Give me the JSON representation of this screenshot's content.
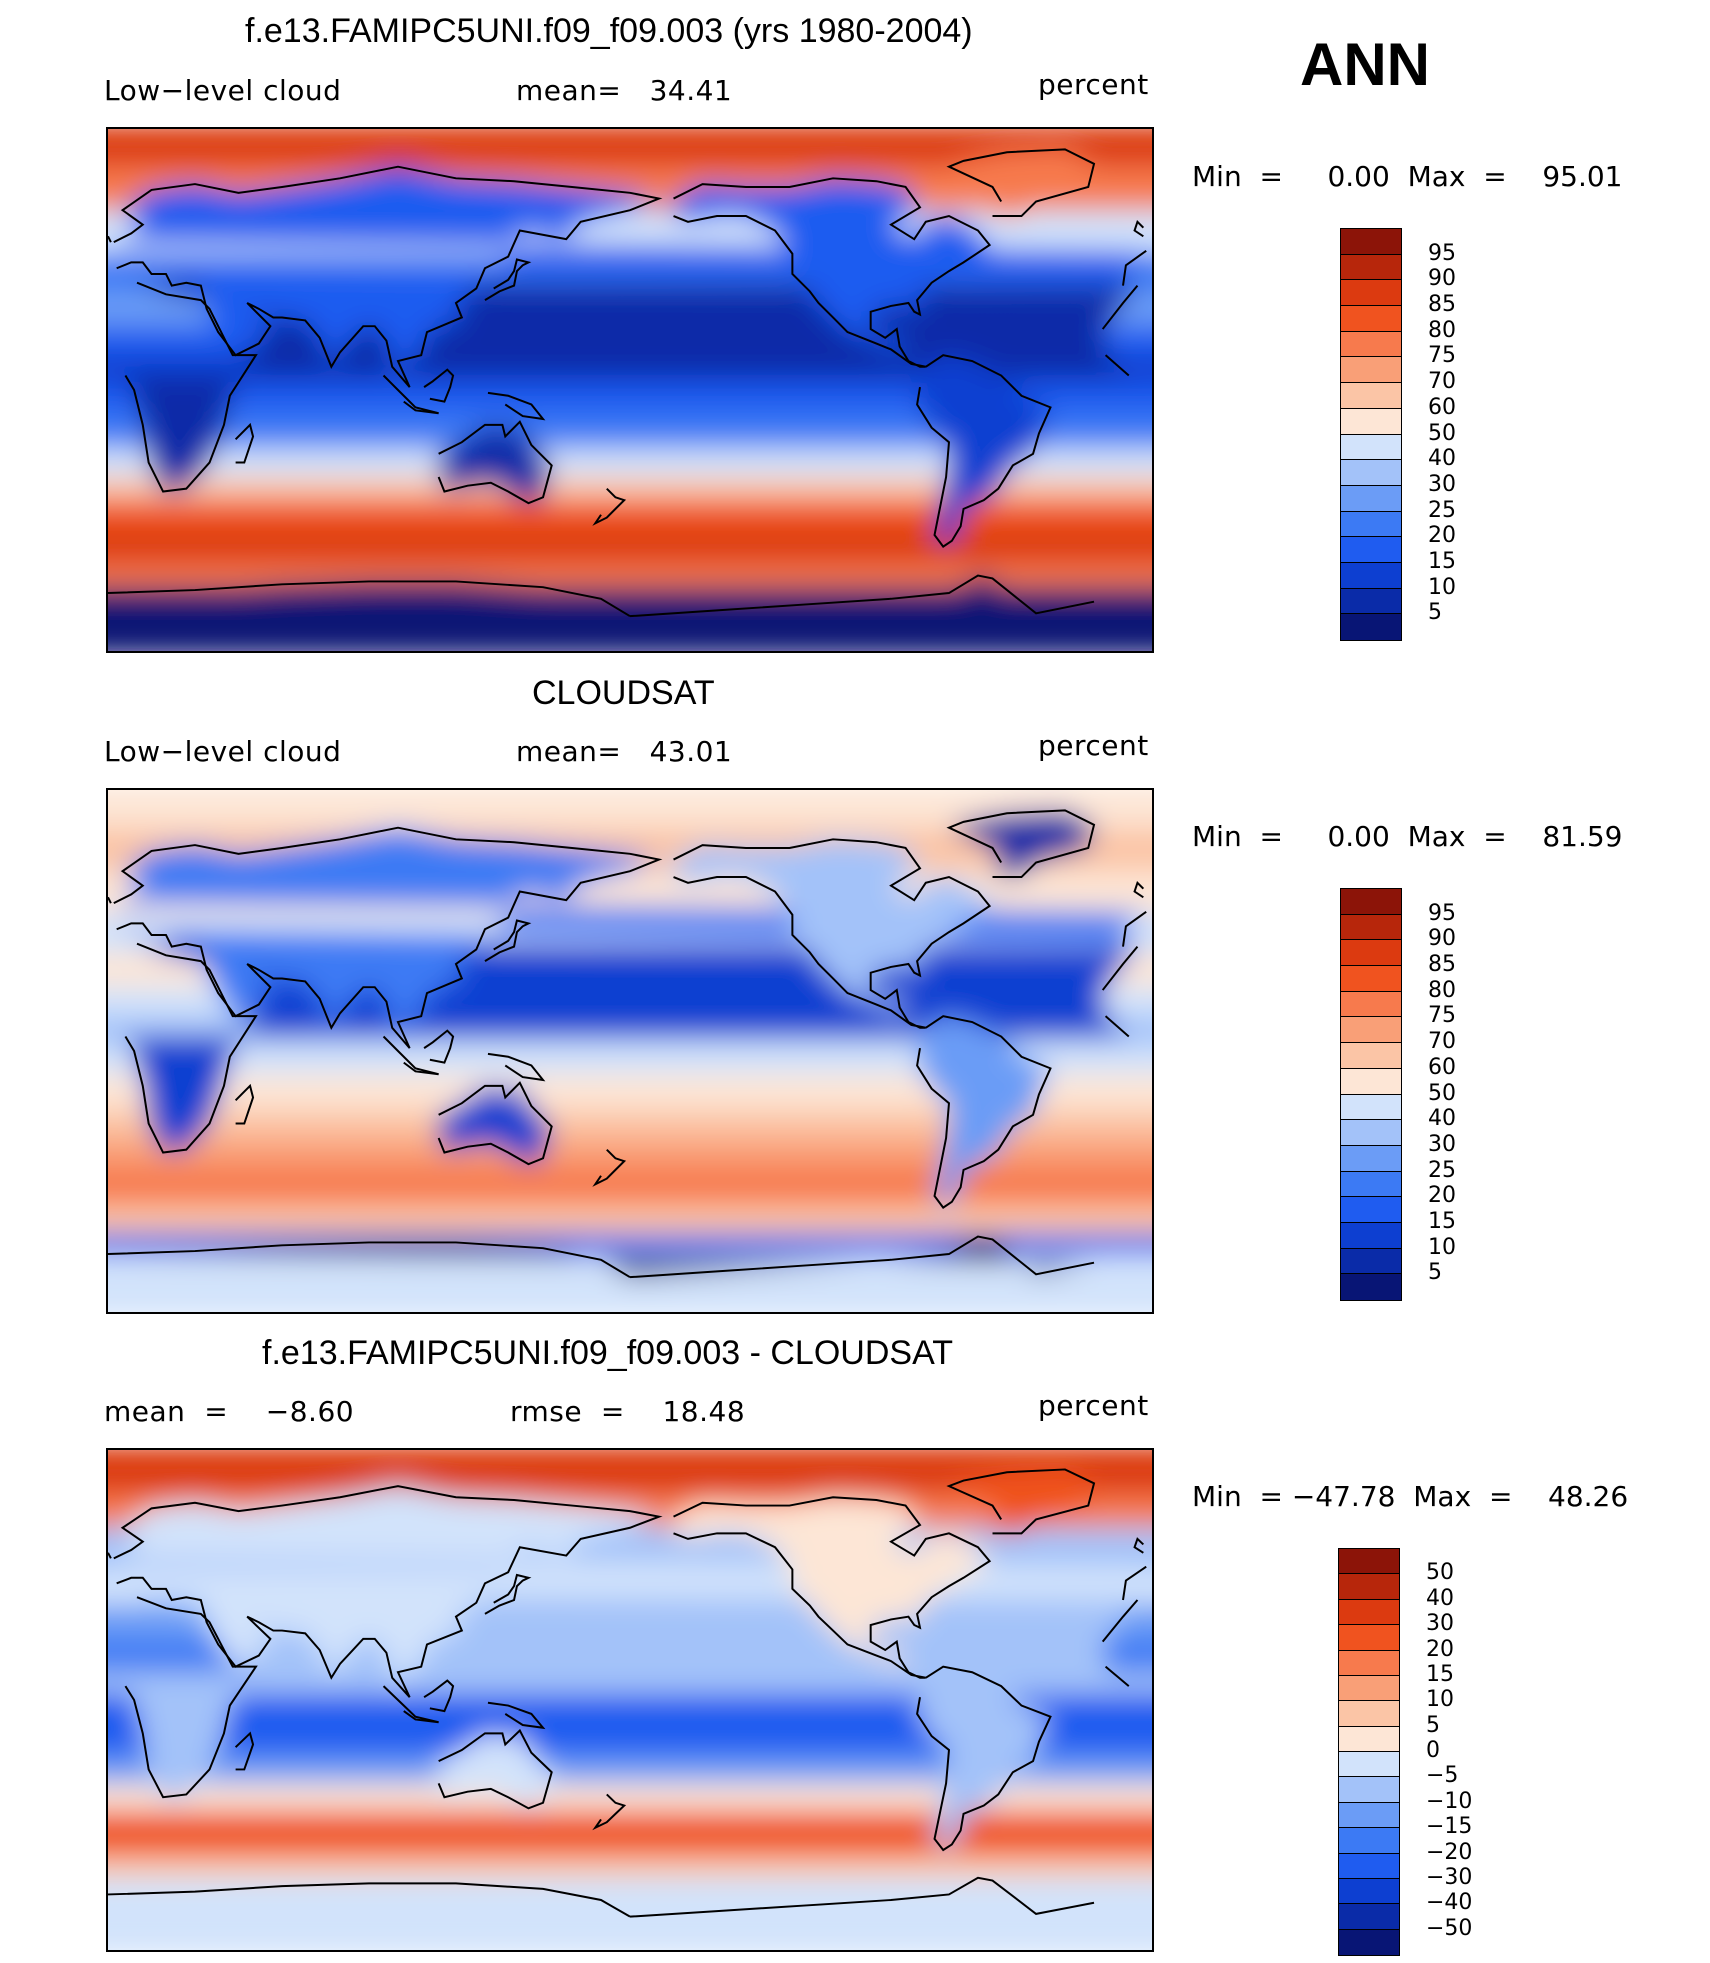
{
  "season": "ANN",
  "colors": {
    "frame": "#000000",
    "background": "#ffffff"
  },
  "palette_abs": [
    "#081575",
    "#0a2ba8",
    "#0d3fd1",
    "#1f5cf0",
    "#3c7af4",
    "#6b9cf6",
    "#a3c2f9",
    "#d2e3fb",
    "#fde6d6",
    "#fbc5a6",
    "#f99f77",
    "#f77a4d",
    "#f0531f",
    "#dc3a10",
    "#b7260b",
    "#8c1408"
  ],
  "palette_diff": [
    "#081575",
    "#0a2ba8",
    "#0d3fd1",
    "#1f5cf0",
    "#3c7af4",
    "#6b9cf6",
    "#a3c2f9",
    "#d2e3fb",
    "#fde6d6",
    "#fbc5a6",
    "#f99f77",
    "#f77a4d",
    "#f0531f",
    "#dc3a10",
    "#b7260b",
    "#8c1408"
  ],
  "panels": [
    {
      "id": "model",
      "title": "f.e13.FAMIPC5UNI.f09_f09.003 (yrs 1980-2004)",
      "left_label": "Low−level cloud",
      "center_label": "mean=   34.41",
      "right_label": "percent",
      "minmax": "Min  =     0.00  Max  =    95.01",
      "colorbar_levels": [
        "95",
        "90",
        "85",
        "80",
        "75",
        "70",
        "60",
        "50",
        "40",
        "30",
        "25",
        "20",
        "15",
        "10",
        "5"
      ],
      "map_type": "model"
    },
    {
      "id": "obs",
      "title": "CLOUDSAT",
      "left_label": "Low−level cloud",
      "center_label": "mean=   43.01",
      "right_label": "percent",
      "minmax": "Min  =     0.00  Max  =    81.59",
      "colorbar_levels": [
        "95",
        "90",
        "85",
        "80",
        "75",
        "70",
        "60",
        "50",
        "40",
        "30",
        "25",
        "20",
        "15",
        "10",
        "5"
      ],
      "map_type": "obs"
    },
    {
      "id": "diff",
      "title": "f.e13.FAMIPC5UNI.f09_f09.003 - CLOUDSAT",
      "left_label": "mean  =    −8.60",
      "center_label": "rmse  =    18.48",
      "right_label": "percent",
      "minmax": "Min  = −47.78  Max  =    48.26",
      "colorbar_levels": [
        "50",
        "40",
        "30",
        "20",
        "15",
        "10",
        "5",
        "0",
        "−5",
        "−10",
        "−15",
        "−20",
        "−30",
        "−40",
        "−50"
      ],
      "map_type": "diff"
    }
  ]
}
